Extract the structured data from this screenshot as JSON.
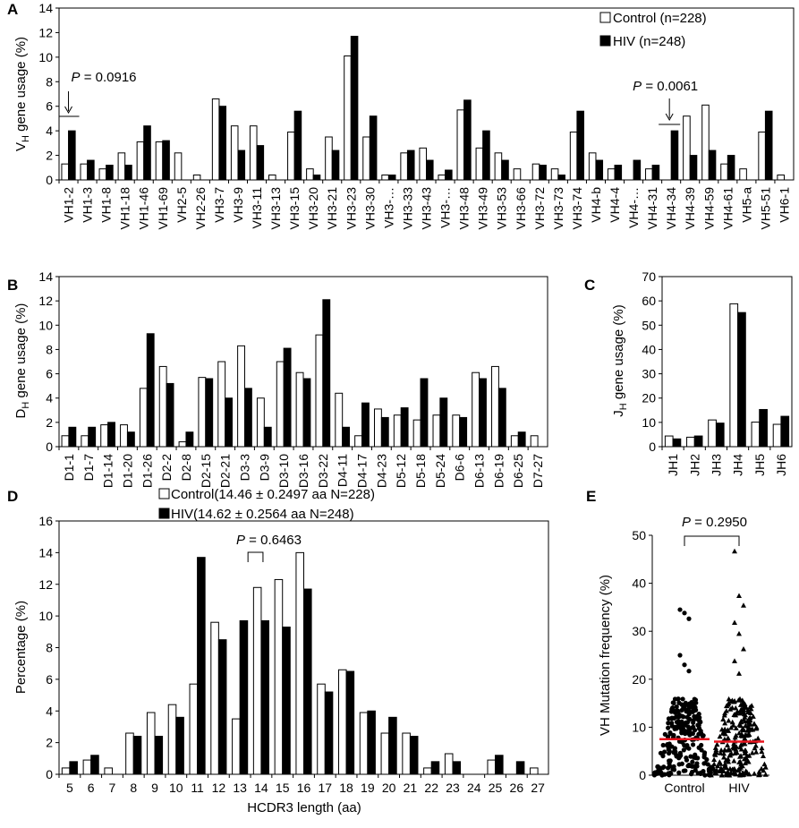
{
  "chart_data": [
    {
      "panel": "A",
      "type": "bar",
      "ylabel": "V",
      "ylabel_sub": "H",
      "ylabel_rest": " gene usage (%)",
      "ylim": [
        0,
        14
      ],
      "yticks": [
        0,
        2,
        4,
        6,
        8,
        10,
        12,
        14
      ],
      "categories": [
        "VH1-2",
        "VH1-3",
        "VH1-8",
        "VH1-18",
        "VH1-46",
        "VH1-69",
        "VH2-5",
        "VH2-26",
        "VH3-7",
        "VH3-9",
        "VH3-11",
        "VH3-13",
        "VH3-15",
        "VH3-20",
        "VH3-21",
        "VH3-23",
        "VH3-30",
        "VH3-…",
        "VH3-33",
        "VH3-43",
        "VH3-…",
        "VH3-48",
        "VH3-49",
        "VH3-53",
        "VH3-66",
        "VH3-72",
        "VH3-73",
        "VH3-74",
        "VH4-b",
        "VH4-4",
        "VH4-…",
        "VH4-31",
        "VH4-34",
        "VH4-39",
        "VH4-59",
        "VH4-61",
        "VH5-a",
        "VH5-51",
        "VH6-1"
      ],
      "series": [
        {
          "name": "Control (n=228)",
          "values": [
            1.3,
            1.3,
            0.9,
            2.2,
            3.1,
            3.1,
            2.2,
            0.4,
            6.6,
            4.4,
            4.4,
            0.4,
            3.9,
            0.9,
            3.5,
            10.1,
            3.5,
            0.4,
            2.2,
            2.6,
            0.4,
            5.7,
            2.6,
            2.2,
            0.9,
            1.3,
            0.9,
            3.9,
            2.2,
            0.9,
            0,
            0.9,
            0,
            5.2,
            6.1,
            1.3,
            0.9,
            3.9,
            0.4
          ]
        },
        {
          "name": "HIV (n=248)",
          "values": [
            4.0,
            1.6,
            1.2,
            1.2,
            4.4,
            3.2,
            0,
            0,
            6.0,
            2.4,
            2.8,
            0,
            5.6,
            0.4,
            2.4,
            11.7,
            5.2,
            0.4,
            2.4,
            1.6,
            0.8,
            6.5,
            4.0,
            1.6,
            0,
            1.2,
            0.4,
            5.6,
            1.6,
            1.2,
            1.6,
            1.2,
            4.0,
            2.0,
            2.4,
            2.0,
            0,
            5.6,
            0
          ]
        }
      ],
      "legend_position": "top-right",
      "annotations": [
        {
          "text_italic": "P",
          "text": " = 0.0916",
          "target": "VH1-2"
        },
        {
          "text_italic": "P",
          "text": " = 0.0061",
          "target": "VH4-34"
        }
      ]
    },
    {
      "panel": "B",
      "type": "bar",
      "ylabel": "D",
      "ylabel_sub": "H",
      "ylabel_rest": " gene usage (%)",
      "ylim": [
        0,
        14
      ],
      "yticks": [
        0,
        2,
        4,
        6,
        8,
        10,
        12,
        14
      ],
      "categories": [
        "D1-1",
        "D1-7",
        "D1-14",
        "D1-20",
        "D1-26",
        "D2-2",
        "D2-8",
        "D2-15",
        "D2-21",
        "D3-3",
        "D3-9",
        "D3-10",
        "D3-16",
        "D3-22",
        "D4-11",
        "D4-17",
        "D4-23",
        "D5-12",
        "D5-18",
        "D5-24",
        "D6-6",
        "D6-13",
        "D6-19",
        "D6-25",
        "D7-27"
      ],
      "series": [
        {
          "name": "Control",
          "values": [
            0.9,
            0.9,
            1.8,
            1.8,
            4.8,
            6.6,
            0.4,
            5.7,
            7.0,
            8.3,
            4.0,
            7.0,
            6.1,
            9.2,
            4.4,
            0.9,
            3.1,
            2.6,
            2.2,
            2.6,
            2.6,
            6.1,
            6.6,
            0.9,
            0.9
          ]
        },
        {
          "name": "HIV",
          "values": [
            1.6,
            1.6,
            2.0,
            1.2,
            9.3,
            5.2,
            1.2,
            5.6,
            4.0,
            4.8,
            1.6,
            8.1,
            5.6,
            12.1,
            1.6,
            3.6,
            2.4,
            3.2,
            5.6,
            4.0,
            2.4,
            5.6,
            4.8,
            1.2,
            0
          ]
        }
      ]
    },
    {
      "panel": "C",
      "type": "bar",
      "ylabel": "J",
      "ylabel_sub": "H",
      "ylabel_rest": " gene usage (%)",
      "ylim": [
        0,
        70
      ],
      "yticks": [
        0,
        10,
        20,
        30,
        40,
        50,
        60,
        70
      ],
      "categories": [
        "JH1",
        "JH2",
        "JH3",
        "JH4",
        "JH5",
        "JH6"
      ],
      "series": [
        {
          "name": "Control",
          "values": [
            4.4,
            3.9,
            11.0,
            58.8,
            10.1,
            9.2
          ]
        },
        {
          "name": "HIV",
          "values": [
            3.2,
            4.4,
            9.7,
            55.2,
            15.3,
            12.5
          ]
        }
      ]
    },
    {
      "panel": "D",
      "type": "bar",
      "xlabel": "HCDR3 length (aa)",
      "ylabel": "Percentage (%)",
      "ylim": [
        0,
        16
      ],
      "yticks": [
        0,
        2,
        4,
        6,
        8,
        10,
        12,
        14,
        16
      ],
      "categories": [
        "5",
        "6",
        "7",
        "8",
        "9",
        "10",
        "11",
        "12",
        "13",
        "14",
        "15",
        "16",
        "17",
        "18",
        "19",
        "20",
        "21",
        "22",
        "23",
        "24",
        "25",
        "26",
        "27"
      ],
      "series": [
        {
          "name": "Control(14.46 ± 0.2497 aa N=228)",
          "values": [
            0.4,
            0.9,
            0.4,
            2.6,
            3.9,
            4.4,
            5.7,
            9.6,
            3.5,
            11.8,
            12.3,
            14.0,
            5.7,
            6.6,
            3.9,
            2.6,
            2.6,
            0.4,
            1.3,
            0,
            0.9,
            0,
            0.4
          ]
        },
        {
          "name": "HIV(14.62 ± 0.2564 aa N=248)",
          "values": [
            0.8,
            1.2,
            0,
            2.4,
            2.4,
            3.6,
            13.7,
            8.5,
            9.7,
            9.7,
            9.3,
            11.7,
            5.2,
            6.5,
            4.0,
            3.6,
            2.4,
            0.8,
            0.8,
            0,
            1.2,
            0.8,
            0
          ]
        }
      ],
      "annotation": {
        "text_italic": "P",
        "text": " = 0.6463",
        "between": [
          "13",
          "14"
        ]
      }
    },
    {
      "panel": "E",
      "type": "scatter",
      "ylabel": "VH Mutation frequency (%)",
      "ylim": [
        0,
        50
      ],
      "yticks": [
        0,
        10,
        20,
        30,
        40,
        50
      ],
      "categories": [
        "Control",
        "HIV"
      ],
      "medians": [
        7.5,
        7.0
      ],
      "median_color": "#e8141e",
      "annotation": {
        "text_italic": "P",
        "text": " = 0.2950"
      },
      "outliers": {
        "Control": [
          34.5,
          33.8,
          32.6,
          25.0,
          23.0,
          21.7
        ],
        "HIV": [
          46.7,
          37.4,
          35.4,
          31.8,
          29.5,
          26.3,
          23.8,
          21.2
        ]
      }
    }
  ]
}
